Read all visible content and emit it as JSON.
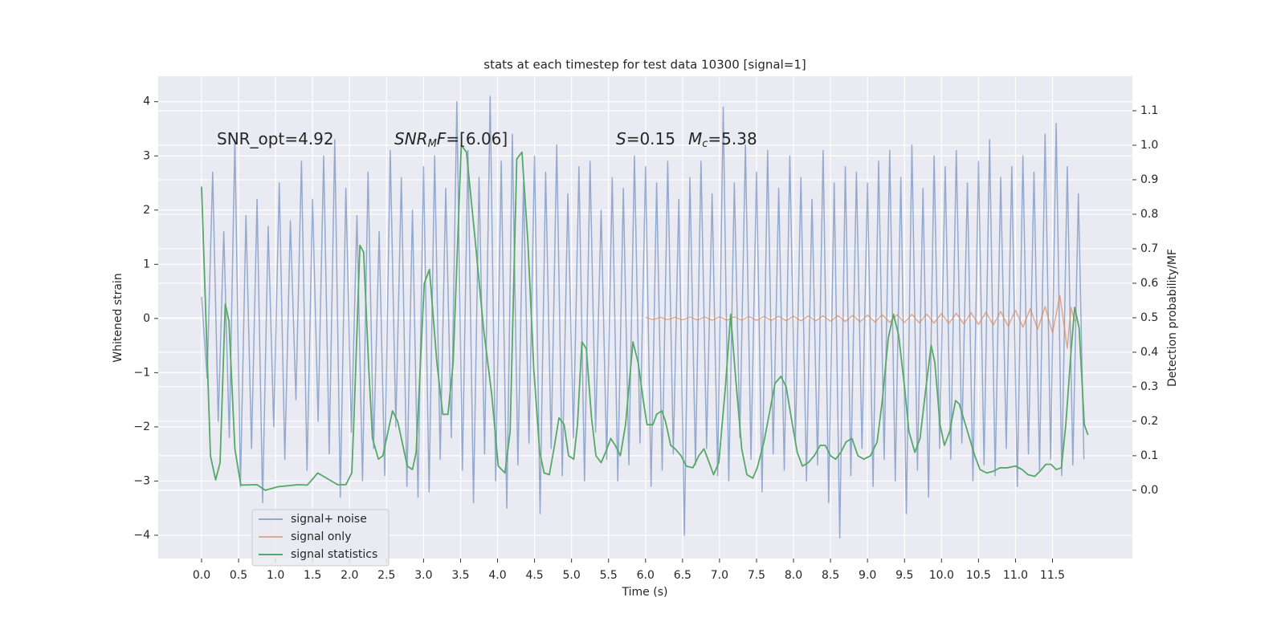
{
  "chart_data": {
    "type": "line",
    "title": "stats at each timestep for test data 10300 [signal=1]",
    "xlabel": "Time (s)",
    "ylabel": "Whitened strain",
    "y2label": "Detection probability/MF",
    "annotations": [
      [
        "SNR_opt=4.92"
      ],
      [
        "SNR",
        "M",
        "F",
        "=[6.06]"
      ],
      [
        "S",
        "=0.15",
        "M",
        "c",
        "=5.38"
      ]
    ],
    "xlim": [
      -0.586,
      12.58
    ],
    "ylim": [
      -4.43,
      4.47
    ],
    "y2lim": [
      -0.198,
      1.2
    ],
    "xticks": [
      {
        "value": 0,
        "label": "0.0"
      },
      0.5,
      {
        "value": 1,
        "label": "1.0"
      },
      1.5,
      {
        "value": 2,
        "label": "2.0"
      },
      2.5,
      {
        "value": 3,
        "label": "3.0"
      },
      3.5,
      {
        "value": 4,
        "label": "4.0"
      },
      4.5,
      {
        "value": 5,
        "label": "5.0"
      },
      5.5,
      {
        "value": 6,
        "label": "6.0"
      },
      6.5,
      {
        "value": 7,
        "label": "7.0"
      },
      7.5,
      {
        "value": 8,
        "label": "8.0"
      },
      8.5,
      {
        "value": 9,
        "label": "9.0"
      },
      9.5,
      {
        "value": 10,
        "label": "10.0"
      },
      10.5,
      {
        "value": 11,
        "label": "11.0"
      },
      11.5
    ],
    "yticks": [
      {
        "value": -4,
        "label": "−4"
      },
      {
        "value": -3,
        "label": "−3"
      },
      {
        "value": -2,
        "label": "−2"
      },
      {
        "value": -1,
        "label": "−1"
      },
      0,
      1,
      2,
      3,
      4
    ],
    "y2ticks": [
      {
        "value": 0,
        "label": "0.0"
      },
      0.1,
      0.2,
      0.3,
      0.4,
      0.5,
      0.6,
      0.7,
      0.8,
      0.9,
      {
        "value": 1,
        "label": "1.0"
      },
      1.1
    ],
    "grid": true,
    "legend": "lower left",
    "series": [
      {
        "name": "signal+ noise",
        "color": "#4c72b0",
        "x": [
          0,
          0.075,
          0.15,
          0.225,
          0.3,
          0.375,
          0.45,
          0.525,
          0.6,
          0.675,
          0.75,
          0.825,
          0.9,
          0.975,
          1.05,
          1.125,
          1.2,
          1.275,
          1.35,
          1.425,
          1.5,
          1.575,
          1.65,
          1.725,
          1.8,
          1.875,
          1.95,
          2.025,
          2.1,
          2.175,
          2.25,
          2.325,
          2.4,
          2.475,
          2.55,
          2.625,
          2.7,
          2.775,
          2.85,
          2.925,
          3,
          3.075,
          3.15,
          3.225,
          3.3,
          3.375,
          3.45,
          3.525,
          3.6,
          3.675,
          3.75,
          3.825,
          3.9,
          3.975,
          4.05,
          4.125,
          4.2,
          4.275,
          4.35,
          4.425,
          4.5,
          4.575,
          4.65,
          4.725,
          4.8,
          4.875,
          4.95,
          5.025,
          5.1,
          5.175,
          5.25,
          5.325,
          5.4,
          5.475,
          5.55,
          5.625,
          5.7,
          5.775,
          5.85,
          5.925,
          6,
          6.075,
          6.15,
          6.225,
          6.3,
          6.375,
          6.45,
          6.525,
          6.6,
          6.675,
          6.75,
          6.825,
          6.9,
          6.975,
          7.05,
          7.125,
          7.2,
          7.275,
          7.35,
          7.425,
          7.5,
          7.575,
          7.65,
          7.725,
          7.8,
          7.875,
          7.95,
          8.025,
          8.1,
          8.175,
          8.25,
          8.325,
          8.4,
          8.475,
          8.55,
          8.625,
          8.7,
          8.775,
          8.85,
          8.925,
          9,
          9.075,
          9.15,
          9.225,
          9.3,
          9.375,
          9.45,
          9.525,
          9.6,
          9.675,
          9.75,
          9.825,
          9.9,
          9.975,
          10.05,
          10.125,
          10.2,
          10.275,
          10.35,
          10.425,
          10.5,
          10.575,
          10.65,
          10.725,
          10.8,
          10.875,
          10.95,
          11.025,
          11.1,
          11.175,
          11.25,
          11.325,
          11.4,
          11.475,
          11.55,
          11.625,
          11.7,
          11.775,
          11.85,
          11.925
        ],
        "values": [
          0.4,
          -1.1,
          2.7,
          -1.9,
          1.6,
          -2.2,
          3.3,
          -3.1,
          1.9,
          -2.4,
          2.2,
          -3.4,
          1.7,
          -2.0,
          2.5,
          -2.6,
          1.8,
          -1.5,
          2.9,
          -2.8,
          2.2,
          -1.9,
          3.0,
          -2.5,
          3.3,
          -3.3,
          2.4,
          -2.1,
          1.9,
          -3.0,
          2.7,
          -2.4,
          1.6,
          -2.9,
          3.1,
          -2.0,
          2.6,
          -3.1,
          2.0,
          -3.3,
          2.8,
          -3.2,
          3.0,
          -2.6,
          2.4,
          -2.2,
          4.0,
          -2.8,
          3.1,
          -3.4,
          2.6,
          -2.5,
          4.1,
          -3.0,
          2.9,
          -3.5,
          3.4,
          -2.7,
          2.5,
          -2.3,
          3.0,
          -3.6,
          2.7,
          -2.4,
          3.2,
          -2.9,
          2.3,
          -2.2,
          2.8,
          -3.0,
          2.9,
          -2.1,
          2.0,
          -2.6,
          2.6,
          -3.0,
          2.4,
          -2.7,
          3.0,
          -2.3,
          2.8,
          -3.1,
          2.5,
          -2.8,
          2.9,
          -2.5,
          2.2,
          -4.0,
          2.6,
          -2.7,
          2.9,
          -2.4,
          2.3,
          -2.9,
          3.9,
          -3.0,
          2.5,
          -2.2,
          3.2,
          -2.6,
          2.7,
          -3.2,
          3.1,
          -2.5,
          2.4,
          -2.8,
          3.0,
          -2.3,
          2.6,
          -3.0,
          2.2,
          -2.7,
          3.1,
          -3.4,
          2.5,
          -4.05,
          2.8,
          -2.9,
          2.7,
          -2.4,
          2.5,
          -3.1,
          2.9,
          -2.6,
          3.1,
          -3.0,
          2.6,
          -3.6,
          3.2,
          -2.8,
          2.4,
          -3.3,
          3.0,
          -2.4,
          2.8,
          -2.6,
          3.1,
          -2.3,
          2.5,
          -3.0,
          2.9,
          -2.7,
          3.3,
          -2.9,
          2.6,
          -2.4,
          2.8,
          -3.1,
          3.0,
          -2.5,
          2.7,
          -2.8,
          3.4,
          -2.6,
          3.6,
          -2.9,
          2.8,
          -2.7,
          2.3,
          -2.6
        ]
      },
      {
        "name": "signal only",
        "color": "#dd8452",
        "x": [
          6,
          6.1,
          6.2,
          6.3,
          6.4,
          6.5,
          6.6,
          6.7,
          6.8,
          6.9,
          7,
          7.1,
          7.2,
          7.3,
          7.4,
          7.5,
          7.6,
          7.7,
          7.8,
          7.9,
          8,
          8.1,
          8.2,
          8.3,
          8.4,
          8.5,
          8.6,
          8.7,
          8.8,
          8.9,
          9,
          9.1,
          9.2,
          9.3,
          9.4,
          9.5,
          9.6,
          9.7,
          9.8,
          9.9,
          10,
          10.1,
          10.2,
          10.3,
          10.4,
          10.5,
          10.6,
          10.7,
          10.8,
          10.9,
          11,
          11.1,
          11.2,
          11.3,
          11.4,
          11.5,
          11.6,
          11.7,
          11.75,
          11.8
        ],
        "values": [
          0.02,
          -0.02,
          0.02,
          -0.02,
          0.02,
          -0.025,
          0.025,
          -0.025,
          0.025,
          -0.03,
          0.03,
          -0.03,
          0.03,
          -0.03,
          0.035,
          -0.035,
          0.035,
          -0.035,
          0.04,
          -0.04,
          0.04,
          -0.045,
          0.045,
          -0.045,
          0.05,
          -0.05,
          0.05,
          -0.055,
          0.055,
          -0.06,
          0.06,
          -0.065,
          0.065,
          -0.07,
          0.07,
          -0.075,
          0.075,
          -0.08,
          0.08,
          -0.085,
          0.09,
          -0.09,
          0.095,
          -0.1,
          0.105,
          -0.11,
          0.115,
          -0.12,
          0.13,
          -0.14,
          0.15,
          -0.16,
          0.18,
          -0.2,
          0.22,
          -0.26,
          0.42,
          -0.55,
          0.2,
          -0.05
        ]
      },
      {
        "name": "signal statistics",
        "color": "#55a868",
        "axis": "y2",
        "x": [
          0,
          0.12,
          0.19,
          0.25,
          0.32,
          0.37,
          0.45,
          0.53,
          0.75,
          0.86,
          1.03,
          1.3,
          1.43,
          1.57,
          1.84,
          1.95,
          2.03,
          2.06,
          2.14,
          2.19,
          2.26,
          2.31,
          2.39,
          2.45,
          2.58,
          2.65,
          2.72,
          2.78,
          2.85,
          2.9,
          3.01,
          3.08,
          3.18,
          3.26,
          3.33,
          3.4,
          3.51,
          3.58,
          3.7,
          3.81,
          3.92,
          4.01,
          4.1,
          4.17,
          4.26,
          4.33,
          4.41,
          4.49,
          4.57,
          4.63,
          4.7,
          4.77,
          4.83,
          4.9,
          4.96,
          5.03,
          5.08,
          5.14,
          5.2,
          5.27,
          5.33,
          5.4,
          5.46,
          5.53,
          5.59,
          5.66,
          5.73,
          5.83,
          5.9,
          5.97,
          6.02,
          6.1,
          6.15,
          6.22,
          6.27,
          6.34,
          6.4,
          6.48,
          6.55,
          6.64,
          6.72,
          6.79,
          6.86,
          6.92,
          6.99,
          7.08,
          7.15,
          7.22,
          7.3,
          7.37,
          7.45,
          7.51,
          7.6,
          7.68,
          7.75,
          7.83,
          7.9,
          7.97,
          8.05,
          8.12,
          8.2,
          8.28,
          8.36,
          8.43,
          8.5,
          8.57,
          8.64,
          8.71,
          8.79,
          8.87,
          8.95,
          9.04,
          9.13,
          9.2,
          9.28,
          9.35,
          9.42,
          9.5,
          9.56,
          9.64,
          9.71,
          9.78,
          9.86,
          9.91,
          9.98,
          10.04,
          10.11,
          10.19,
          10.24,
          10.31,
          10.38,
          10.45,
          10.52,
          10.61,
          10.7,
          10.79,
          10.89,
          11,
          11.09,
          11.17,
          11.26,
          11.33,
          11.41,
          11.48,
          11.55,
          11.62,
          11.68,
          11.75,
          11.8,
          11.86,
          11.93,
          11.98
        ],
        "values": [
          0.88,
          0.1,
          0.03,
          0.08,
          0.54,
          0.49,
          0.12,
          0.015,
          0.016,
          0,
          0.01,
          0.016,
          0.015,
          0.05,
          0.016,
          0.016,
          0.05,
          0.21,
          0.71,
          0.69,
          0.35,
          0.15,
          0.09,
          0.1,
          0.23,
          0.2,
          0.13,
          0.07,
          0.06,
          0.11,
          0.6,
          0.64,
          0.37,
          0.22,
          0.22,
          0.37,
          1,
          0.98,
          0.72,
          0.47,
          0.28,
          0.07,
          0.05,
          0.17,
          0.96,
          0.98,
          0.72,
          0.35,
          0.11,
          0.05,
          0.045,
          0.13,
          0.21,
          0.19,
          0.1,
          0.09,
          0.19,
          0.43,
          0.41,
          0.21,
          0.1,
          0.08,
          0.11,
          0.15,
          0.13,
          0.1,
          0.19,
          0.43,
          0.37,
          0.26,
          0.19,
          0.19,
          0.22,
          0.23,
          0.2,
          0.13,
          0.12,
          0.1,
          0.07,
          0.065,
          0.1,
          0.12,
          0.08,
          0.045,
          0.08,
          0.3,
          0.51,
          0.32,
          0.12,
          0.045,
          0.035,
          0.065,
          0.14,
          0.23,
          0.31,
          0.33,
          0.3,
          0.21,
          0.11,
          0.07,
          0.08,
          0.1,
          0.13,
          0.13,
          0.1,
          0.09,
          0.11,
          0.14,
          0.15,
          0.1,
          0.09,
          0.1,
          0.14,
          0.26,
          0.44,
          0.51,
          0.45,
          0.3,
          0.17,
          0.11,
          0.15,
          0.28,
          0.42,
          0.37,
          0.19,
          0.13,
          0.17,
          0.26,
          0.25,
          0.2,
          0.15,
          0.1,
          0.06,
          0.05,
          0.055,
          0.065,
          0.065,
          0.07,
          0.06,
          0.045,
          0.04,
          0.055,
          0.075,
          0.075,
          0.06,
          0.065,
          0.19,
          0.4,
          0.53,
          0.47,
          0.19,
          0.16
        ]
      }
    ]
  }
}
